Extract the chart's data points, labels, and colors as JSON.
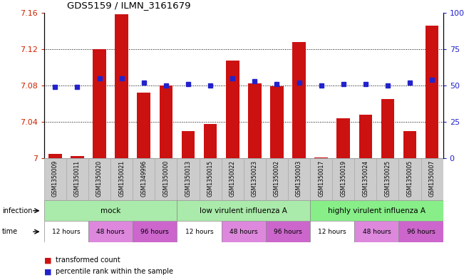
{
  "title": "GDS5159 / ILMN_3161679",
  "samples": [
    "GSM1350009",
    "GSM1350011",
    "GSM1350020",
    "GSM1350021",
    "GSM1349996",
    "GSM1350000",
    "GSM1350013",
    "GSM1350015",
    "GSM1350022",
    "GSM1350023",
    "GSM1350002",
    "GSM1350003",
    "GSM1350017",
    "GSM1350019",
    "GSM1350024",
    "GSM1350025",
    "GSM1350005",
    "GSM1350007"
  ],
  "red_values": [
    7.005,
    7.002,
    7.12,
    7.158,
    7.072,
    7.08,
    7.03,
    7.038,
    7.107,
    7.082,
    7.079,
    7.128,
    7.001,
    7.044,
    7.048,
    7.065,
    7.03,
    7.146
  ],
  "blue_values": [
    49,
    49,
    55,
    55,
    52,
    50,
    51,
    50,
    55,
    53,
    51,
    52,
    50,
    51,
    51,
    50,
    52,
    54
  ],
  "ylim_left": [
    7.0,
    7.16
  ],
  "ylim_right": [
    0,
    100
  ],
  "yticks_left": [
    7.0,
    7.04,
    7.08,
    7.12,
    7.16
  ],
  "ytick_labels_left": [
    "7",
    "7.04",
    "7.08",
    "7.12",
    "7.16"
  ],
  "yticks_right": [
    0,
    25,
    50,
    75,
    100
  ],
  "ytick_labels_right": [
    "0",
    "25",
    "50",
    "75",
    "100%"
  ],
  "bar_color": "#cc1111",
  "dot_color": "#2222cc",
  "mock_color": "#aaeaaa",
  "low_vir_color": "#aaeaaa",
  "high_vir_color": "#88ee88",
  "time_12h_color": "#ffffff",
  "time_48h_color": "#dd88dd",
  "time_96h_color": "#cc66cc",
  "sample_bg_color": "#cccccc",
  "infection_border_color": "#888888",
  "time_border_color": "#888888"
}
